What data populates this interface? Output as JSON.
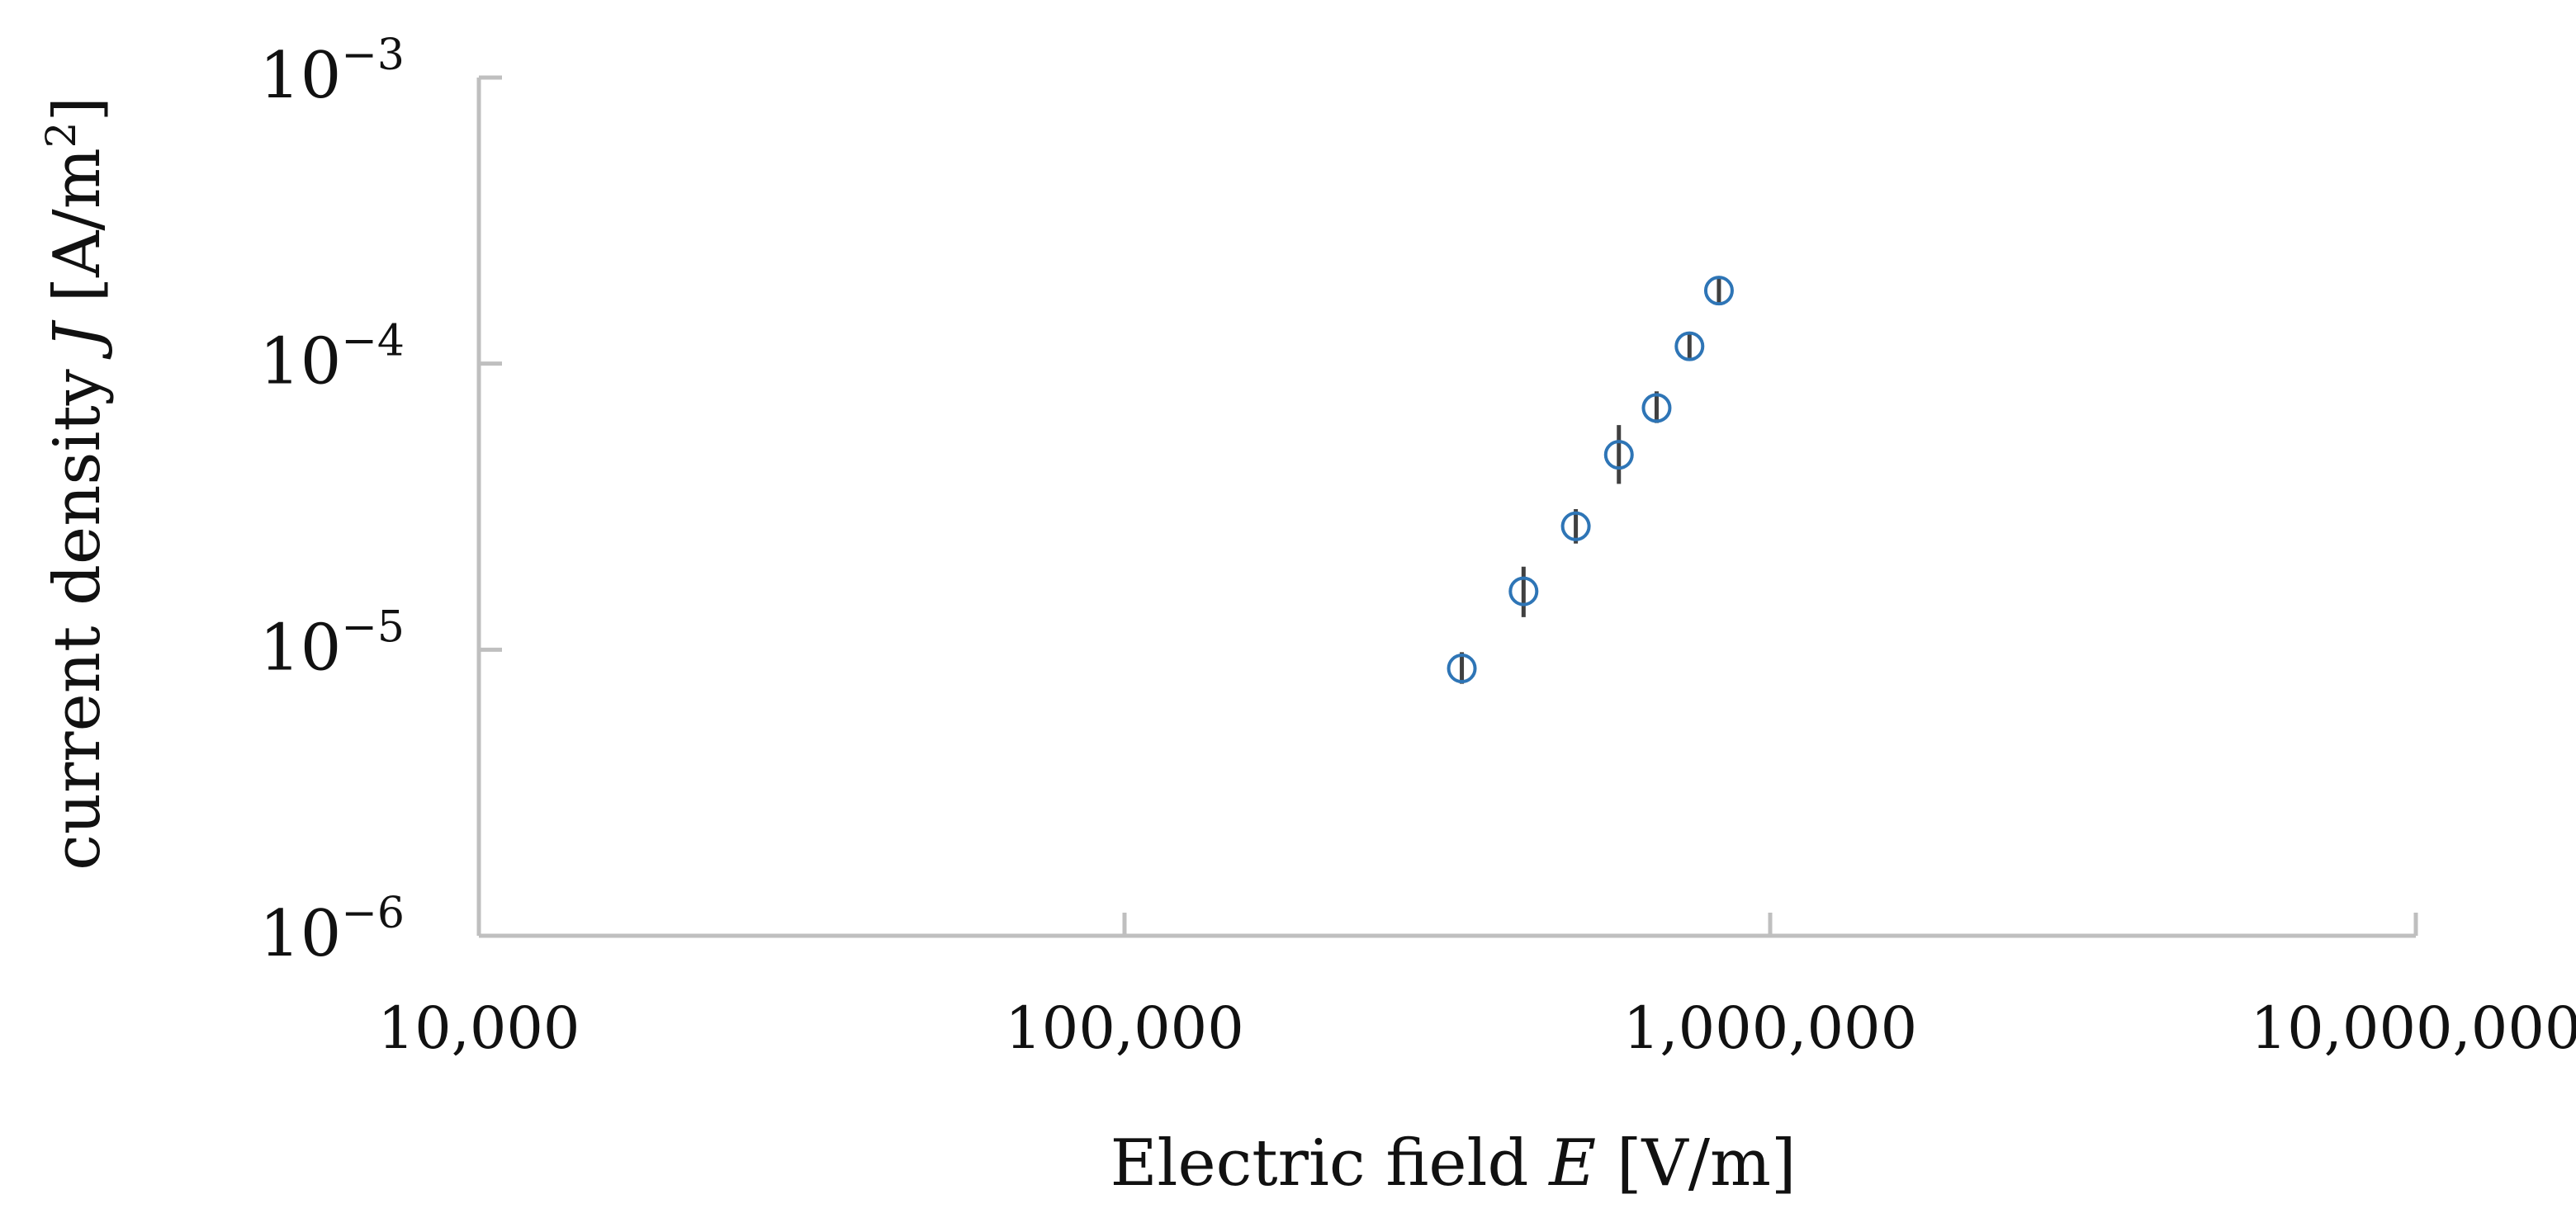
{
  "chart_data": {
    "type": "scatter",
    "xlabel": {
      "prefix": "Electric field ",
      "symbol": "E",
      "suffix": " [V/m]"
    },
    "ylabel": {
      "prefix": "current density ",
      "symbol": "J",
      "suffix_before_sup": " [A/m",
      "superscript": "2",
      "suffix_after_sup": "]"
    },
    "x_scale": "log",
    "y_scale": "log",
    "xlim": [
      10000,
      10000000
    ],
    "ylim": [
      1e-06,
      0.001
    ],
    "x_ticks": [
      {
        "value": 10000,
        "label": "10,000"
      },
      {
        "value": 100000,
        "label": "100,000"
      },
      {
        "value": 1000000,
        "label": "1,000,000"
      },
      {
        "value": 10000000,
        "label": "10,000,000"
      }
    ],
    "y_ticks": [
      {
        "value": 1e-06,
        "base": "10",
        "exp": "−6"
      },
      {
        "value": 1e-05,
        "base": "10",
        "exp": "−5"
      },
      {
        "value": 0.0001,
        "base": "10",
        "exp": "−4"
      },
      {
        "value": 0.001,
        "base": "10",
        "exp": "−3"
      }
    ],
    "grid": false,
    "colors": {
      "marker": "#2E75B6",
      "error_bar": "#404040",
      "axis": "#BFBFBF"
    },
    "points": [
      {
        "x": 333000,
        "y": 8.6e-06,
        "y_err_low": 7.6e-06,
        "y_err_high": 9.8e-06
      },
      {
        "x": 415000,
        "y": 1.6e-05,
        "y_err_low": 1.3e-05,
        "y_err_high": 1.95e-05
      },
      {
        "x": 500000,
        "y": 2.7e-05,
        "y_err_low": 2.35e-05,
        "y_err_high": 3.1e-05
      },
      {
        "x": 583000,
        "y": 4.8e-05,
        "y_err_low": 3.8e-05,
        "y_err_high": 6.1e-05
      },
      {
        "x": 667000,
        "y": 7e-05,
        "y_err_low": 6.2e-05,
        "y_err_high": 8e-05
      },
      {
        "x": 750000,
        "y": 0.000115,
        "y_err_low": 0.000103,
        "y_err_high": 0.000128
      },
      {
        "x": 833000,
        "y": 0.00018,
        "y_err_low": 0.00016,
        "y_err_high": 0.0002
      }
    ]
  }
}
